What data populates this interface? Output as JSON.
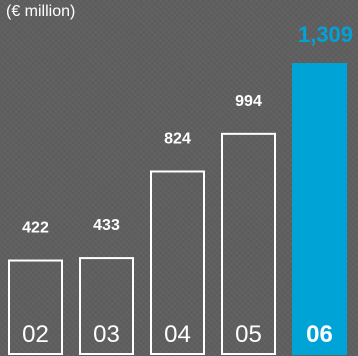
{
  "chart_data": {
    "type": "bar",
    "unit_label": "(€ million)",
    "categories": [
      "02",
      "03",
      "04",
      "05",
      "06"
    ],
    "values": [
      422,
      433,
      824,
      994,
      1309
    ],
    "value_labels": [
      "422",
      "433",
      "824",
      "994",
      "1,309"
    ],
    "highlight_index": 4,
    "ylim": [
      0,
      1400
    ],
    "grid": false,
    "colors": {
      "background": "#5f5f5f",
      "bar_outline": "#ffffff",
      "highlight_fill": "#00a3d6",
      "label": "#ffffff",
      "highlight_label": "#00a3d6"
    }
  }
}
